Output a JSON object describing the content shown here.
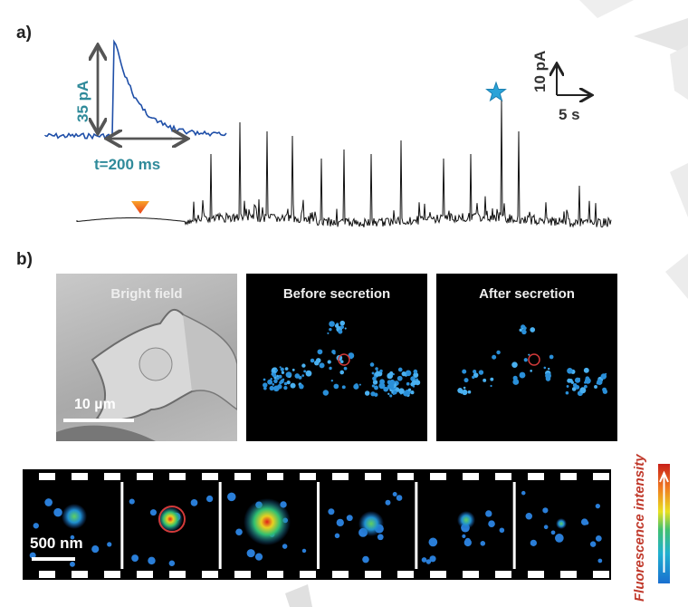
{
  "panel_a": {
    "label": "a)",
    "inset": {
      "amplitude_label": "35 pA",
      "duration_label": "t=200 ms"
    },
    "scale_bar": {
      "current_label": "10 pA",
      "time_label": "5 s"
    },
    "colors": {
      "inset_trace": "#1f4fa8",
      "trace": "#111111",
      "stimulus_marker": "#f07a1a",
      "star": "#2aa3d8"
    }
  },
  "panel_b": {
    "label": "b)",
    "images": [
      {
        "title": "Bright field",
        "scale_label": "10 µm"
      },
      {
        "title": "Before secretion"
      },
      {
        "title": "After secretion"
      }
    ],
    "filmstrip": {
      "frame_count": 6,
      "scale_label": "500 nm"
    },
    "colorbar_label": "Fluorescence intensity",
    "colors": {
      "highlight_circle": "#d23a3a",
      "colorbar_label": "#c0392b"
    }
  }
}
